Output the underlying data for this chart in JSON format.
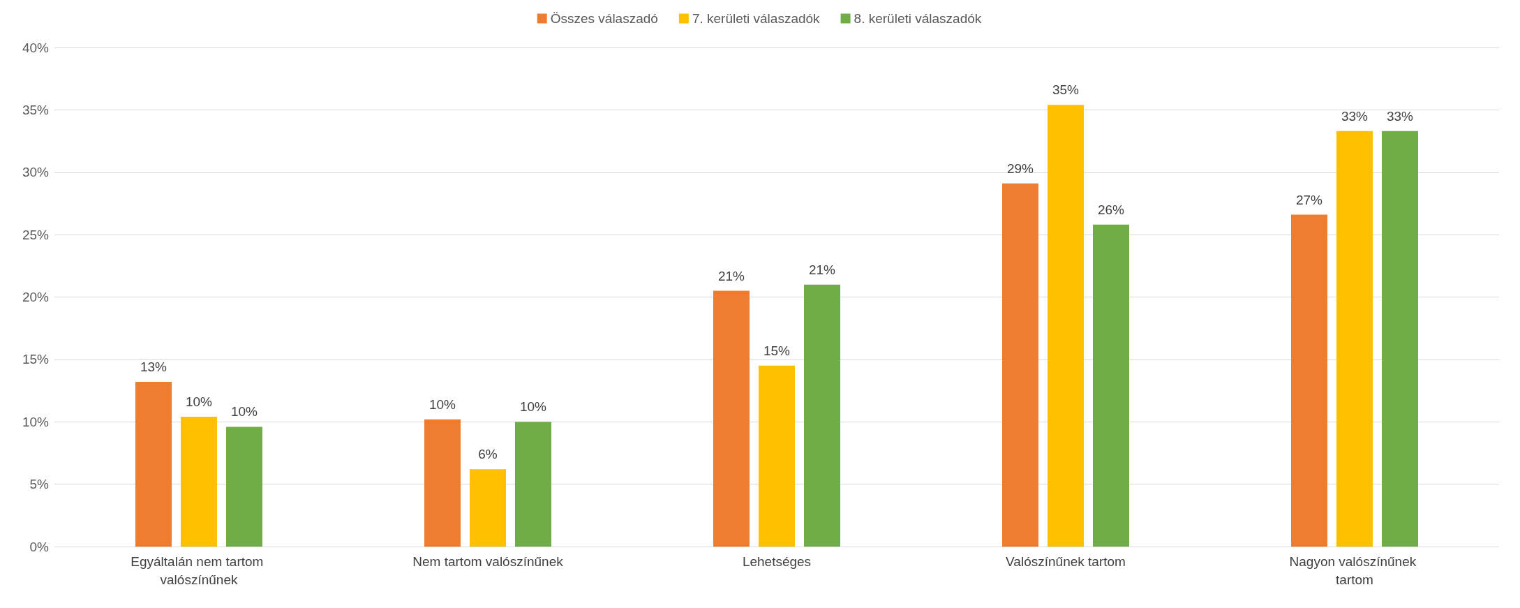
{
  "chart_data": {
    "type": "bar",
    "categories": [
      "Egyáltalán nem tartom valószínűnek",
      "Nem tartom valószínűnek",
      "Lehetséges",
      "Valószínűnek tartom",
      "Nagyon valószínűnek tartom"
    ],
    "series": [
      {
        "name": "Összes válaszadó",
        "color": "#ed7d31",
        "values": [
          13.2,
          10.2,
          20.5,
          29.1,
          26.6
        ],
        "value_labels": [
          "13%",
          "10%",
          "21%",
          "29%",
          "27%"
        ]
      },
      {
        "name": "7. kerületi válaszadók",
        "color": "#ffc000",
        "values": [
          10.4,
          6.2,
          14.5,
          35.4,
          33.3
        ],
        "value_labels": [
          "10%",
          "6%",
          "15%",
          "35%",
          "33%"
        ]
      },
      {
        "name": "8. kerületi válaszadók",
        "color": "#70ad47",
        "values": [
          9.6,
          10.0,
          21.0,
          25.8,
          33.3
        ],
        "value_labels": [
          "10%",
          "10%",
          "21%",
          "26%",
          "33%"
        ]
      }
    ],
    "ylim": [
      0,
      40
    ],
    "yticks": [
      {
        "value": 0,
        "label": "0%"
      },
      {
        "value": 5,
        "label": "5%"
      },
      {
        "value": 10,
        "label": "10%"
      },
      {
        "value": 15,
        "label": "15%"
      },
      {
        "value": 20,
        "label": "20%"
      },
      {
        "value": 25,
        "label": "25%"
      },
      {
        "value": 30,
        "label": "30%"
      },
      {
        "value": 35,
        "label": "35%"
      },
      {
        "value": 40,
        "label": "40%"
      }
    ],
    "grid": "y",
    "legend": "top"
  }
}
